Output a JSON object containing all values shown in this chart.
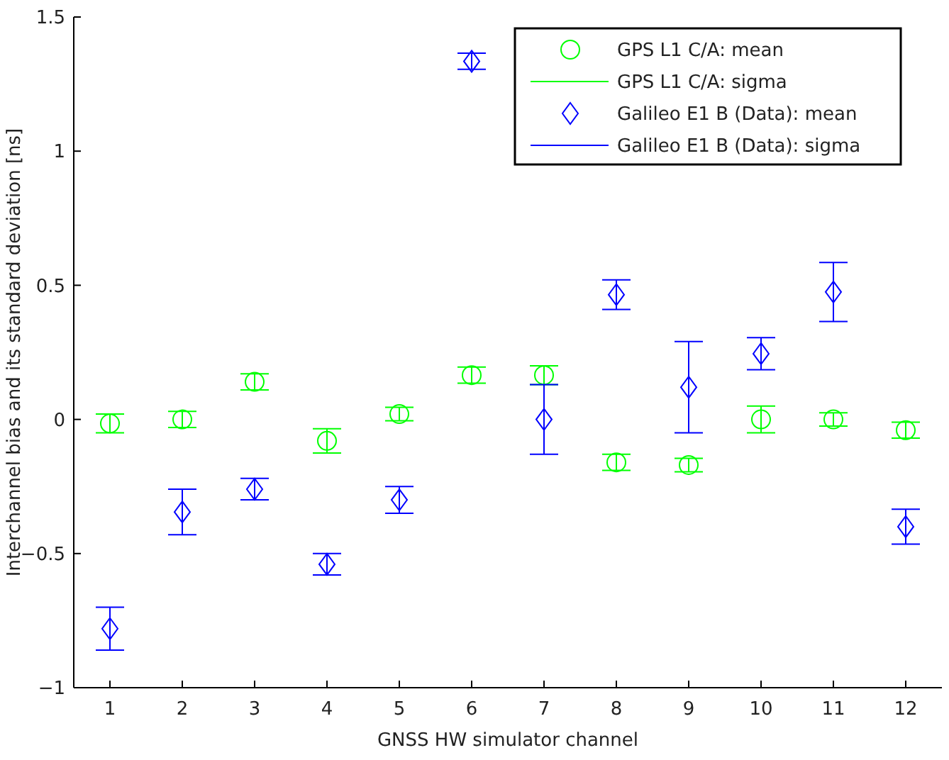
{
  "chart_data": {
    "type": "scatter",
    "xlabel": "GNSS HW simulator channel",
    "ylabel": "Interchannel bias and its standard deviation [ns]",
    "x": [
      1,
      2,
      3,
      4,
      5,
      6,
      7,
      8,
      9,
      10,
      11,
      12
    ],
    "xlim": [
      0.5,
      12.5
    ],
    "xticks": [
      1,
      2,
      3,
      4,
      5,
      6,
      7,
      8,
      9,
      10,
      11,
      12
    ],
    "ylim": [
      -1,
      1.5
    ],
    "yticks": [
      -1,
      -0.5,
      0,
      0.5,
      1,
      1.5
    ],
    "grid": false,
    "legend": "top right",
    "annotations": [
      "GPS L1 C/A: sigma",
      "Galileo E1 B (Data): sigma"
    ],
    "series": [
      {
        "name": "GPS L1 C/A: mean",
        "color": "#00ff00",
        "marker": "circle",
        "values": [
          -0.015,
          0,
          0.14,
          -0.08,
          0.02,
          0.165,
          0.165,
          -0.16,
          -0.17,
          0,
          0,
          -0.04
        ],
        "errors": [
          0.035,
          0.03,
          0.03,
          0.045,
          0.025,
          0.03,
          0.035,
          0.03,
          0.025,
          0.05,
          0.025,
          0.03
        ]
      },
      {
        "name": "Galileo E1 B (Data): mean",
        "color": "#0000ff",
        "marker": "diamond",
        "values": [
          -0.78,
          -0.345,
          -0.26,
          -0.54,
          -0.3,
          1.335,
          0,
          0.465,
          0.12,
          0.245,
          0.475,
          -0.4
        ],
        "errors": [
          0.08,
          0.085,
          0.04,
          0.04,
          0.05,
          0.03,
          0.13,
          0.055,
          0.17,
          0.06,
          0.11,
          0.065
        ]
      }
    ]
  }
}
